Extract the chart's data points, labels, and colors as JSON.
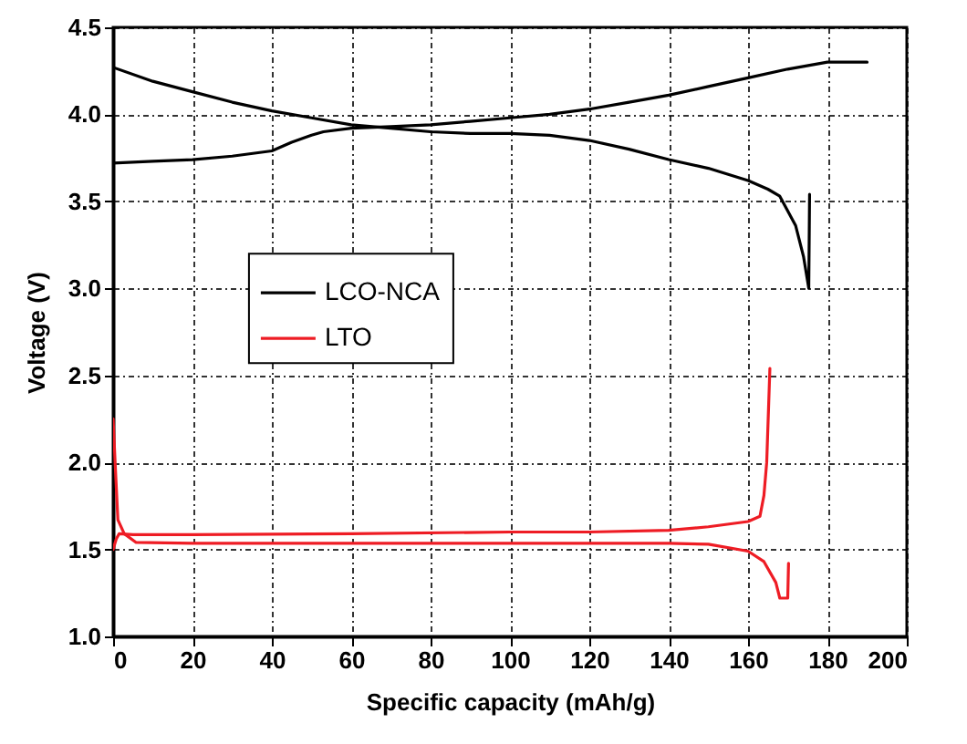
{
  "chart_data": {
    "type": "line",
    "xlabel": "Specific capacity (mAh/g)",
    "ylabel": "Voltage (V)",
    "xlim": [
      0,
      200
    ],
    "xticks": [
      0,
      20,
      40,
      60,
      80,
      100,
      120,
      140,
      160,
      180,
      200
    ],
    "ylim": [
      1.0,
      4.5
    ],
    "yticks": [
      {
        "value": 1.0,
        "label": "1.0"
      },
      {
        "value": 1.5,
        "label": "1.5"
      },
      {
        "value": 2.0,
        "label": "2.0"
      },
      {
        "value": 2.5,
        "label": "2.5"
      },
      {
        "value": 3.0,
        "label": "3.0"
      },
      {
        "value": 3.5,
        "label": "3.5"
      },
      {
        "value": 4.0,
        "label": "4.0"
      },
      {
        "value": 4.5,
        "label": "4.5"
      }
    ],
    "grid": true,
    "legend": "left",
    "marker": "none",
    "line_style": "solid",
    "series": [
      {
        "name": "LCO-NCA",
        "color": "#000000",
        "x": [
          0,
          10,
          20,
          30,
          40,
          45,
          50,
          53,
          60,
          70,
          80,
          90,
          100,
          110,
          120,
          130,
          140,
          150,
          160,
          170,
          180,
          185,
          190
        ],
        "values": [
          3.72,
          3.73,
          3.74,
          3.76,
          3.79,
          3.84,
          3.88,
          3.9,
          3.92,
          3.93,
          3.94,
          3.96,
          3.98,
          4.0,
          4.03,
          4.07,
          4.11,
          4.16,
          4.21,
          4.26,
          4.3,
          4.3,
          4.3
        ]
      },
      {
        "color": "#000000",
        "x": [
          0,
          10,
          20,
          30,
          40,
          50,
          60,
          70,
          80,
          90,
          100,
          110,
          120,
          130,
          140,
          150,
          160,
          165,
          168,
          172,
          174,
          175.3,
          175.5
        ],
        "values": [
          4.27,
          4.19,
          4.13,
          4.07,
          4.02,
          3.98,
          3.94,
          3.92,
          3.9,
          3.89,
          3.89,
          3.88,
          3.85,
          3.8,
          3.74,
          3.69,
          3.62,
          3.57,
          3.53,
          3.36,
          3.18,
          3.0,
          3.54
        ]
      },
      {
        "name": "LTO",
        "color": "#ee1c24",
        "x": [
          0,
          0.8,
          1.5,
          5,
          20,
          60,
          100,
          120,
          140,
          150,
          160,
          163,
          164,
          164.7,
          165.5
        ],
        "values": [
          1.5,
          1.56,
          1.59,
          1.585,
          1.585,
          1.59,
          1.6,
          1.6,
          1.61,
          1.63,
          1.66,
          1.69,
          1.81,
          2.0,
          2.54
        ]
      },
      {
        "color": "#ee1c24",
        "x": [
          0,
          0.5,
          1.2,
          2.8,
          5.8,
          20,
          60,
          100,
          140,
          150,
          160,
          164,
          167,
          168,
          170,
          170.2
        ],
        "values": [
          2.25,
          2.0,
          1.67,
          1.59,
          1.54,
          1.535,
          1.535,
          1.535,
          1.535,
          1.53,
          1.49,
          1.43,
          1.31,
          1.22,
          1.22,
          1.42
        ]
      }
    ]
  }
}
